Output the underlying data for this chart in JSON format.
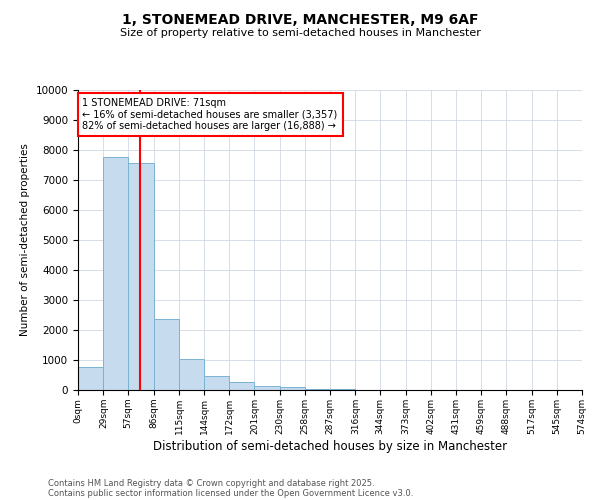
{
  "title1": "1, STONEMEAD DRIVE, MANCHESTER, M9 6AF",
  "title2": "Size of property relative to semi-detached houses in Manchester",
  "xlabel": "Distribution of semi-detached houses by size in Manchester",
  "ylabel": "Number of semi-detached properties",
  "bin_edges": [
    0,
    29,
    57,
    86,
    115,
    144,
    172,
    201,
    230,
    258,
    287,
    316,
    344,
    373,
    402,
    431,
    459,
    488,
    517,
    545,
    574
  ],
  "bar_heights": [
    780,
    7780,
    7580,
    2380,
    1020,
    460,
    280,
    130,
    90,
    45,
    20,
    5,
    0,
    0,
    0,
    0,
    0,
    0,
    0,
    0
  ],
  "bar_color": "#c6dcee",
  "bar_edge_color": "#7ab3d3",
  "property_size": 71,
  "property_label": "1 STONEMEAD DRIVE: 71sqm",
  "pct_smaller": 16,
  "pct_larger": 82,
  "n_smaller": 3357,
  "n_larger": 16888,
  "vline_color": "red",
  "ylim": [
    0,
    10000
  ],
  "yticks": [
    0,
    1000,
    2000,
    3000,
    4000,
    5000,
    6000,
    7000,
    8000,
    9000,
    10000
  ],
  "footnote1": "Contains HM Land Registry data © Crown copyright and database right 2025.",
  "footnote2": "Contains public sector information licensed under the Open Government Licence v3.0.",
  "background_color": "#ffffff",
  "grid_color": "#d0d8e4"
}
